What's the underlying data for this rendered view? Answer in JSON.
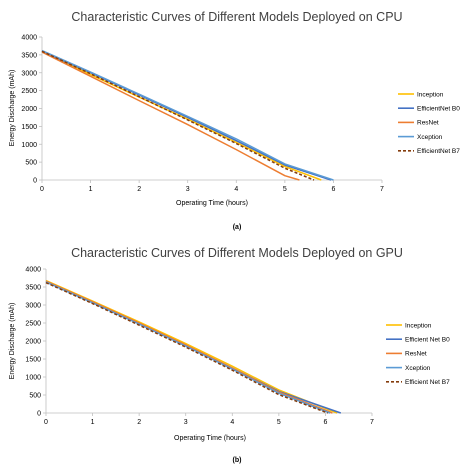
{
  "chart_data": [
    {
      "type": "line",
      "title": "Characteristic Curves of Different Models Deployed on CPU",
      "xlabel": "Operating Time (hours)",
      "ylabel": "Energy Discharge (mAh)",
      "caption": "(a)",
      "xlim": [
        0,
        7
      ],
      "ylim": [
        0,
        4000
      ],
      "xticks": [
        "0",
        "1",
        "2",
        "3",
        "4",
        "5",
        "6",
        "7"
      ],
      "yticks": [
        "0",
        "500",
        "1000",
        "1500",
        "2000",
        "2500",
        "3000",
        "3500",
        "4000"
      ],
      "grid": false,
      "legend_position": "right",
      "series": [
        {
          "name": "Inception",
          "color": "#FFC000",
          "dash": "solid",
          "points": [
            [
              0,
              3600
            ],
            [
              1,
              2950
            ],
            [
              2,
              2320
            ],
            [
              3,
              1700
            ],
            [
              4,
              1050
            ],
            [
              5,
              380
            ],
            [
              5.75,
              0
            ]
          ]
        },
        {
          "name": "EfficientNet B0",
          "color": "#4472C4",
          "dash": "solid",
          "points": [
            [
              0,
              3600
            ],
            [
              1,
              3000
            ],
            [
              2,
              2380
            ],
            [
              3,
              1750
            ],
            [
              4,
              1100
            ],
            [
              5,
              420
            ],
            [
              5.95,
              0
            ]
          ]
        },
        {
          "name": "ResNet",
          "color": "#ED7D31",
          "dash": "solid",
          "points": [
            [
              0,
              3580
            ],
            [
              1,
              2900
            ],
            [
              2,
              2220
            ],
            [
              3,
              1550
            ],
            [
              4,
              850
            ],
            [
              5,
              120
            ],
            [
              5.3,
              0
            ]
          ]
        },
        {
          "name": "Xception",
          "color": "#5B9BD5",
          "dash": "solid",
          "points": [
            [
              0,
              3620
            ],
            [
              1,
              3020
            ],
            [
              2,
              2400
            ],
            [
              3,
              1780
            ],
            [
              4,
              1150
            ],
            [
              5,
              450
            ],
            [
              6,
              0
            ]
          ]
        },
        {
          "name": "EfficientNet B7",
          "color": "#843C0C",
          "dash": "dashed",
          "points": [
            [
              0,
              3600
            ],
            [
              1,
              2970
            ],
            [
              2,
              2330
            ],
            [
              3,
              1680
            ],
            [
              4,
              1020
            ],
            [
              5,
              330
            ],
            [
              5.6,
              0
            ]
          ]
        }
      ]
    },
    {
      "type": "line",
      "title": "Characteristic Curves of Different Models Deployed on GPU",
      "xlabel": "Operating Time (hours)",
      "ylabel": "Energy Discharge (mAh)",
      "caption": "(b)",
      "xlim": [
        0,
        7
      ],
      "ylim": [
        0,
        4000
      ],
      "xticks": [
        "0",
        "1",
        "2",
        "3",
        "4",
        "5",
        "6",
        "7"
      ],
      "yticks": [
        "0",
        "500",
        "1000",
        "1500",
        "2000",
        "2500",
        "3000",
        "3500",
        "4000"
      ],
      "grid": false,
      "legend_position": "right",
      "series": [
        {
          "name": "Inception",
          "color": "#FFC000",
          "dash": "solid",
          "points": [
            [
              0,
              3680
            ],
            [
              1,
              3110
            ],
            [
              2,
              2530
            ],
            [
              3,
              1930
            ],
            [
              4,
              1300
            ],
            [
              5,
              640
            ],
            [
              6.25,
              0
            ]
          ]
        },
        {
          "name": "Efficient Net B0",
          "color": "#4472C4",
          "dash": "solid",
          "points": [
            [
              0,
              3640
            ],
            [
              1,
              3070
            ],
            [
              2,
              2480
            ],
            [
              3,
              1880
            ],
            [
              4,
              1250
            ],
            [
              5,
              600
            ],
            [
              6.33,
              0
            ]
          ]
        },
        {
          "name": "ResNet",
          "color": "#ED7D31",
          "dash": "solid",
          "points": [
            [
              0,
              3660
            ],
            [
              1,
              3090
            ],
            [
              2,
              2500
            ],
            [
              3,
              1890
            ],
            [
              4,
              1250
            ],
            [
              5,
              580
            ],
            [
              6.15,
              0
            ]
          ]
        },
        {
          "name": "Xception",
          "color": "#5B9BD5",
          "dash": "solid",
          "points": [
            [
              0,
              3640
            ],
            [
              1,
              3060
            ],
            [
              2,
              2470
            ],
            [
              3,
              1860
            ],
            [
              4,
              1220
            ],
            [
              5,
              550
            ],
            [
              6.1,
              0
            ]
          ]
        },
        {
          "name": "Efficient Net B7",
          "color": "#843C0C",
          "dash": "dashed",
          "points": [
            [
              0,
              3620
            ],
            [
              1,
              3040
            ],
            [
              2,
              2440
            ],
            [
              3,
              1830
            ],
            [
              4,
              1190
            ],
            [
              5,
              510
            ],
            [
              6.05,
              0
            ]
          ]
        }
      ]
    }
  ]
}
